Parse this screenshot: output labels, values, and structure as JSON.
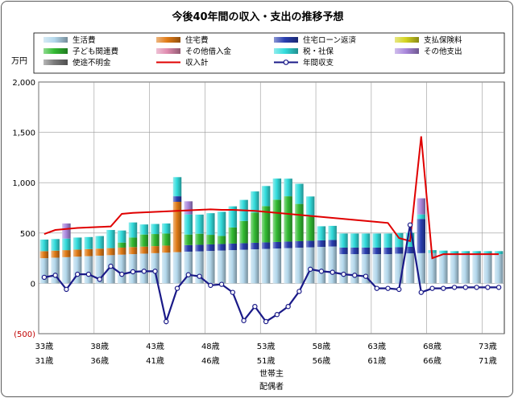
{
  "chart_data": {
    "type": "bar",
    "title": "今後40年間の収入・支出の推移予想",
    "ylabel": "万円",
    "ylim": [
      -500,
      2000
    ],
    "yticks": [
      -500,
      0,
      500,
      1000,
      1500,
      2000
    ],
    "ytick_labels": [
      "(500)",
      "0",
      "500",
      "1,000",
      "1,500",
      "2,000"
    ],
    "grid": true,
    "legend_position": "top",
    "x_head_labels": [
      "33歳",
      "38歳",
      "43歳",
      "48歳",
      "53歳",
      "58歳",
      "63歳",
      "68歳",
      "73歳"
    ],
    "x_spouse_labels": [
      "31歳",
      "36歳",
      "41歳",
      "46歳",
      "51歳",
      "56歳",
      "61歳",
      "66歳",
      "71歳"
    ],
    "xlabel_head": "世帯主",
    "xlabel_spouse": "配偶者",
    "series": [
      {
        "name": "生活費",
        "color": "#b4d8ec",
        "values": [
          250,
          255,
          260,
          265,
          270,
          275,
          280,
          285,
          290,
          295,
          300,
          305,
          310,
          315,
          318,
          322,
          326,
          330,
          334,
          338,
          342,
          346,
          350,
          354,
          358,
          362,
          366,
          290,
          290,
          290,
          290,
          290,
          295,
          298,
          300,
          300,
          295,
          290,
          290,
          290,
          290,
          290
        ]
      },
      {
        "name": "住宅費",
        "color": "#e07b17",
        "values": [
          70,
          70,
          70,
          70,
          70,
          70,
          70,
          70,
          70,
          70,
          70,
          70,
          500,
          0,
          0,
          0,
          0,
          0,
          0,
          0,
          0,
          0,
          0,
          0,
          0,
          0,
          0,
          0,
          0,
          0,
          0,
          0,
          0,
          0,
          0,
          0,
          0,
          0,
          0,
          0,
          0,
          0
        ]
      },
      {
        "name": "住宅ローン返済",
        "color": "#2a3fb0",
        "values": [
          0,
          0,
          0,
          0,
          0,
          0,
          0,
          0,
          0,
          0,
          0,
          0,
          55,
          65,
          65,
          65,
          65,
          65,
          65,
          65,
          65,
          65,
          65,
          65,
          65,
          65,
          65,
          65,
          65,
          65,
          65,
          65,
          65,
          65,
          340,
          0,
          0,
          0,
          0,
          0,
          0,
          0
        ]
      },
      {
        "name": "支払保険料",
        "color": "#d4d422",
        "values": [
          0,
          0,
          0,
          0,
          0,
          0,
          0,
          0,
          0,
          0,
          0,
          0,
          0,
          0,
          0,
          0,
          0,
          0,
          0,
          0,
          0,
          0,
          0,
          0,
          0,
          0,
          0,
          0,
          0,
          0,
          0,
          0,
          0,
          0,
          0,
          0,
          0,
          0,
          0,
          0,
          0,
          0
        ]
      },
      {
        "name": "子ども関連費",
        "color": "#33bb33",
        "values": [
          0,
          0,
          0,
          0,
          0,
          0,
          0,
          50,
          95,
          120,
          120,
          120,
          0,
          105,
          110,
          95,
          80,
          160,
          220,
          300,
          360,
          420,
          450,
          370,
          240,
          0,
          0,
          0,
          0,
          0,
          0,
          0,
          0,
          0,
          0,
          0,
          0,
          0,
          0,
          0,
          0,
          0
        ]
      },
      {
        "name": "その他借入金",
        "color": "#e08cb0",
        "values": [
          0,
          0,
          0,
          0,
          0,
          0,
          0,
          0,
          0,
          0,
          0,
          0,
          0,
          0,
          0,
          0,
          0,
          0,
          0,
          0,
          0,
          0,
          0,
          0,
          0,
          0,
          0,
          0,
          0,
          0,
          0,
          0,
          0,
          0,
          0,
          0,
          0,
          0,
          0,
          0,
          0,
          0
        ]
      },
      {
        "name": "税・社保",
        "color": "#33dcdc",
        "values": [
          115,
          115,
          115,
          120,
          120,
          125,
          180,
          120,
          150,
          100,
          100,
          100,
          190,
          200,
          190,
          215,
          240,
          210,
          210,
          210,
          200,
          210,
          175,
          200,
          200,
          140,
          140,
          140,
          140,
          140,
          140,
          140,
          140,
          140,
          45,
          30,
          30,
          30,
          30,
          30,
          30,
          30
        ]
      },
      {
        "name": "その他支出",
        "color": "#aa88dd",
        "values": [
          0,
          0,
          150,
          0,
          0,
          0,
          0,
          0,
          0,
          0,
          0,
          0,
          0,
          130,
          0,
          0,
          0,
          0,
          0,
          0,
          0,
          0,
          0,
          0,
          0,
          0,
          0,
          0,
          0,
          0,
          0,
          0,
          0,
          0,
          160,
          0,
          0,
          0,
          0,
          0,
          0,
          0
        ]
      },
      {
        "name": "使途不明金",
        "color": "#7a7a7a",
        "values": [
          0,
          0,
          0,
          0,
          0,
          0,
          0,
          0,
          0,
          0,
          0,
          0,
          0,
          0,
          0,
          0,
          0,
          0,
          0,
          0,
          0,
          0,
          0,
          0,
          0,
          0,
          0,
          0,
          0,
          0,
          0,
          0,
          0,
          0,
          0,
          0,
          0,
          0,
          0,
          0,
          0,
          0
        ]
      }
    ],
    "lines": [
      {
        "name": "収入計",
        "color": "#e00000",
        "values": [
          490,
          530,
          540,
          550,
          555,
          560,
          565,
          690,
          700,
          705,
          710,
          715,
          720,
          725,
          730,
          735,
          730,
          730,
          725,
          720,
          710,
          700,
          690,
          680,
          670,
          660,
          650,
          640,
          630,
          620,
          610,
          600,
          450,
          420,
          1460,
          250,
          290,
          290,
          290,
          290,
          290,
          290
        ]
      },
      {
        "name": "年間収支",
        "color": "#1a1a88",
        "values": [
          60,
          80,
          -60,
          90,
          90,
          40,
          170,
          90,
          115,
          120,
          120,
          -380,
          -50,
          85,
          70,
          -20,
          -10,
          -90,
          -370,
          -230,
          -380,
          -310,
          -230,
          -80,
          140,
          120,
          110,
          90,
          80,
          70,
          -50,
          -50,
          -60,
          580,
          -90,
          -50,
          -50,
          -40,
          -40,
          -40,
          -40,
          -40
        ]
      }
    ]
  }
}
